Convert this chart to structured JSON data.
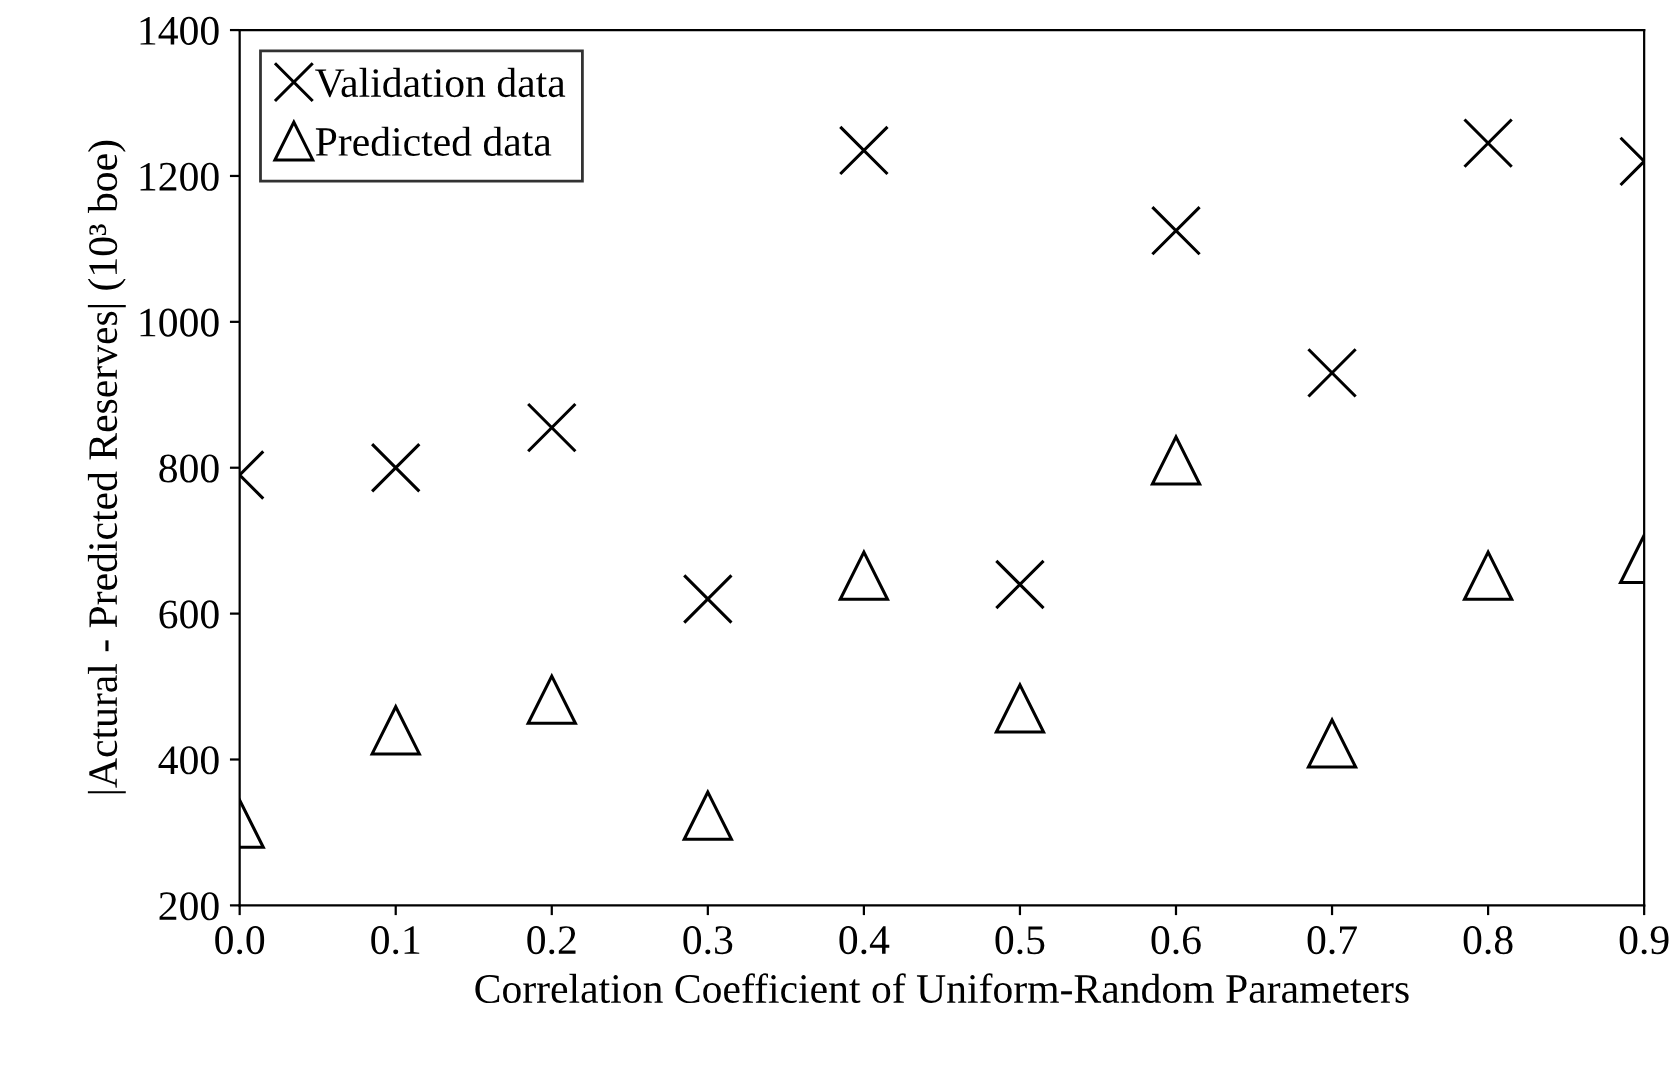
{
  "chart_data": {
    "type": "scatter",
    "xlabel": "Correlation Coefficient of Uniform-Random Parameters",
    "ylabel": "|Actural - Predicted Reserves| (10³ boe)",
    "x": [
      0.0,
      0.1,
      0.2,
      0.3,
      0.4,
      0.5,
      0.6,
      0.7,
      0.8,
      0.9
    ],
    "series": [
      {
        "name": "Validation data",
        "color": "#000000",
        "marker": "cross",
        "values": [
          790,
          800,
          855,
          620,
          1235,
          640,
          1125,
          930,
          1245,
          1220
        ]
      },
      {
        "name": "Predicted data",
        "color": "#000000",
        "marker": "triangle",
        "values": [
          312,
          440,
          482,
          323,
          652,
          470,
          810,
          422,
          652,
          675
        ]
      }
    ],
    "xlim": [
      0,
      0.9
    ],
    "xticks": [
      {
        "value": 0,
        "label": "0.0"
      },
      0.1,
      0.2,
      0.3,
      0.4,
      0.5,
      0.6,
      0.7,
      0.8,
      0.9
    ],
    "ylim": [
      200,
      1400
    ],
    "yticks": [
      200,
      400,
      600,
      800,
      1000,
      1200,
      1400
    ],
    "grid": false,
    "legend": "top left"
  }
}
